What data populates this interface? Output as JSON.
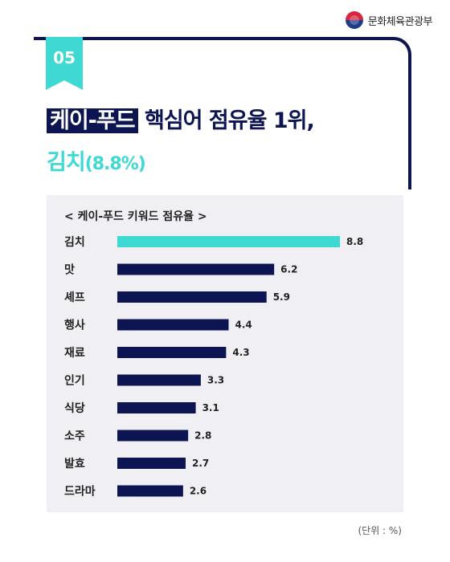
{
  "logo": {
    "text": "문화체육관광부"
  },
  "badge": {
    "number": "05"
  },
  "headline": {
    "highlight": "케이-푸드",
    "rest": "핵심어 점유율 1위,",
    "line2_main": "김치",
    "line2_pct": "(8.8%)"
  },
  "colors": {
    "navy": "#0c1452",
    "accent": "#3fd9d4",
    "panel": "#f0f0f4"
  },
  "chart_data": {
    "type": "bar",
    "orientation": "horizontal",
    "title": "< 케이-푸드 키워드 점유율 >",
    "categories": [
      "김치",
      "맛",
      "셰프",
      "행사",
      "재료",
      "인기",
      "식당",
      "소주",
      "발효",
      "드라마"
    ],
    "values": [
      8.8,
      6.2,
      5.9,
      4.4,
      4.3,
      3.3,
      3.1,
      2.8,
      2.7,
      2.6
    ],
    "value_labels": [
      "8.8",
      "6.2",
      "5.9",
      "4.4",
      "4.3",
      "3.3",
      "3.1",
      "2.8",
      "2.7",
      "2.6"
    ],
    "highlight_index": 0,
    "unit_note": "(단위 : %)"
  }
}
